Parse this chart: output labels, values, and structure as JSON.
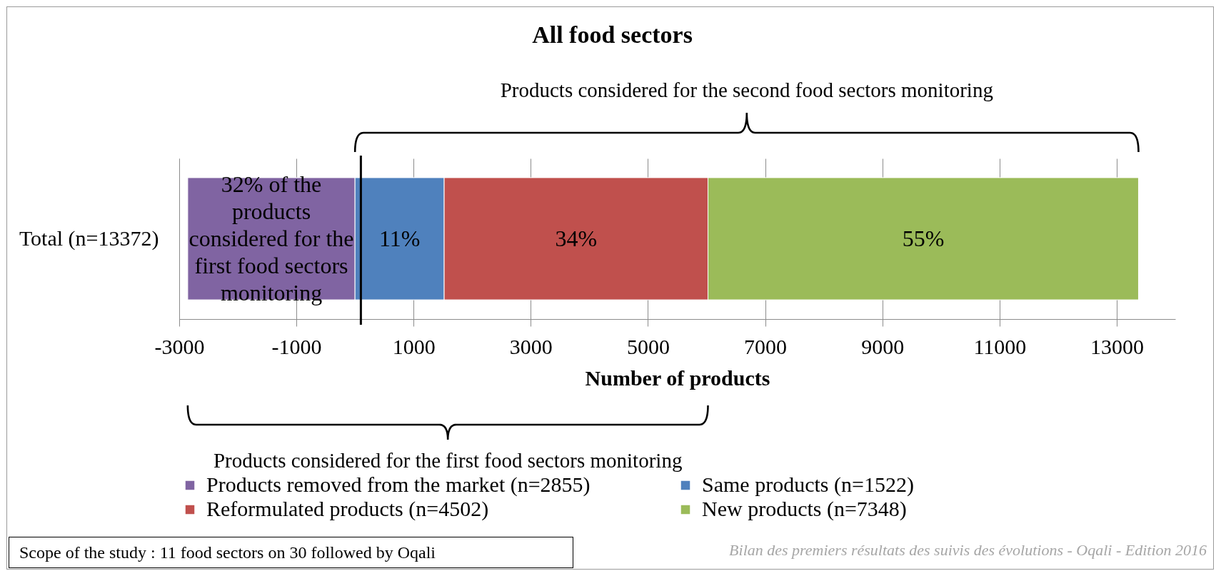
{
  "chart_data": {
    "type": "bar",
    "orientation": "horizontal",
    "stacked": true,
    "title": "All food sectors",
    "xlabel": "Number of products",
    "categories": [
      "Total (n=13372)"
    ],
    "series": [
      {
        "name": "Products removed from the market (n=2855)",
        "color": "#8064a2",
        "values": [
          -2855
        ]
      },
      {
        "name": "Same products (n=1522)",
        "color": "#4f81bd",
        "values": [
          1522
        ]
      },
      {
        "name": "Reformulated products (n=4502)",
        "color": "#c0504d",
        "values": [
          4502
        ]
      },
      {
        "name": "New products (n=7348)",
        "color": "#9bbb59",
        "values": [
          7348
        ]
      }
    ],
    "xlim": [
      -3000,
      14000
    ],
    "xticks": [
      -3000,
      -1000,
      1000,
      3000,
      5000,
      7000,
      9000,
      11000,
      13000
    ],
    "grid": "x",
    "legend": "bottom",
    "ref_lines": [
      {
        "axis": "x",
        "value": 100,
        "color": "#000000"
      }
    ],
    "annotations": [
      "32% of the products considered for the first food sectors monitoring",
      "11%",
      "34%",
      "55%",
      "Products considered for the second food sectors monitoring",
      "Products considered for the first food sectors monitoring",
      "Scope of the study : 11 food sectors on 30 followed by Oqali",
      "Bilan des premiers résultats des suivis des évolutions - Oqali - Edition 2016"
    ]
  }
}
